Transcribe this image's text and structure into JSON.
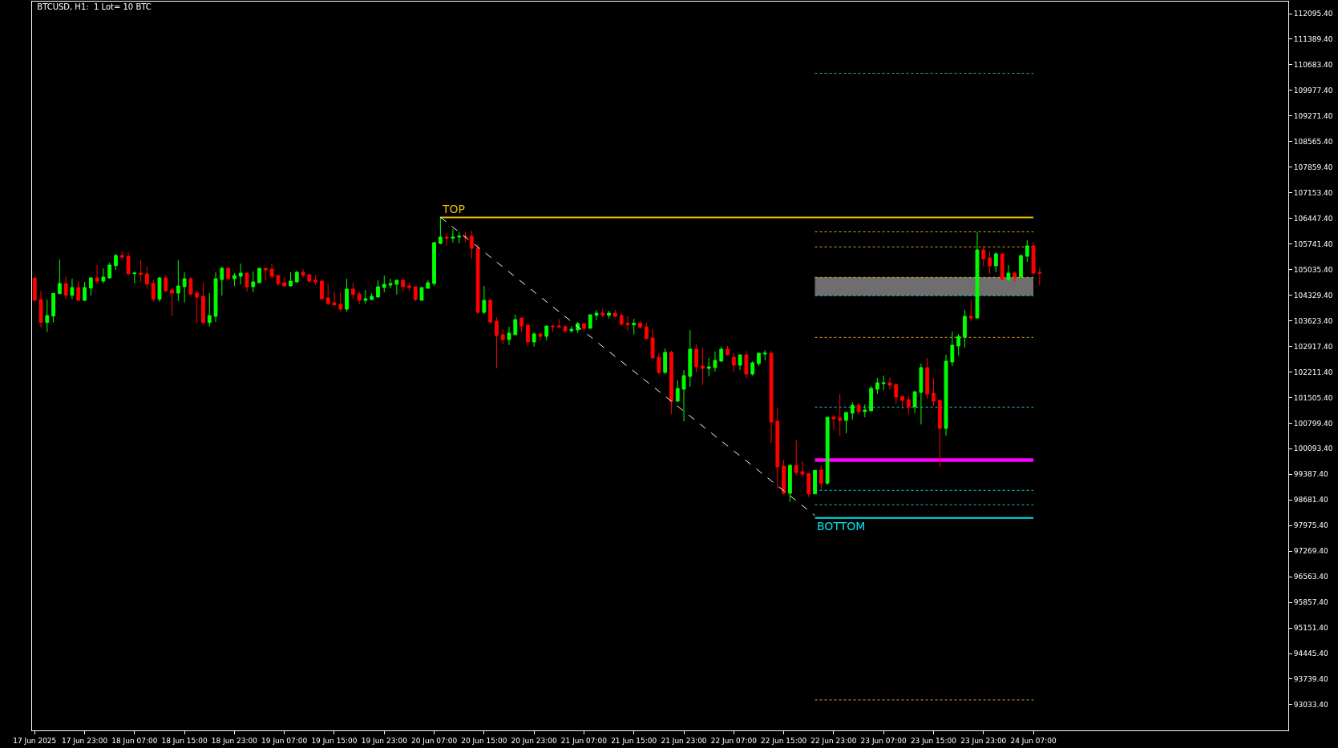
{
  "chart_data": {
    "type": "candlestick",
    "title": "BTCUSD, H1:  1 Lot= 10 BTC",
    "x": [
      "2025-06-17T15:00",
      "2025-06-17T16:00",
      "2025-06-17T17:00",
      "2025-06-17T18:00",
      "2025-06-17T19:00",
      "2025-06-17T20:00",
      "2025-06-17T21:00",
      "2025-06-17T22:00",
      "2025-06-17T23:00",
      "2025-06-18T00:00",
      "2025-06-18T01:00",
      "2025-06-18T02:00",
      "2025-06-18T03:00",
      "2025-06-18T04:00",
      "2025-06-18T05:00",
      "2025-06-18T06:00",
      "2025-06-18T07:00",
      "2025-06-18T08:00",
      "2025-06-18T09:00",
      "2025-06-18T10:00",
      "2025-06-18T11:00",
      "2025-06-18T12:00",
      "2025-06-18T13:00",
      "2025-06-18T14:00",
      "2025-06-18T15:00",
      "2025-06-18T16:00",
      "2025-06-18T17:00",
      "2025-06-18T18:00",
      "2025-06-18T19:00",
      "2025-06-18T20:00",
      "2025-06-18T21:00",
      "2025-06-18T22:00",
      "2025-06-18T23:00",
      "2025-06-19T00:00",
      "2025-06-19T01:00",
      "2025-06-19T02:00",
      "2025-06-19T03:00",
      "2025-06-19T04:00",
      "2025-06-19T05:00",
      "2025-06-19T06:00",
      "2025-06-19T07:00",
      "2025-06-19T08:00",
      "2025-06-19T09:00",
      "2025-06-19T10:00",
      "2025-06-19T11:00",
      "2025-06-19T12:00",
      "2025-06-19T13:00",
      "2025-06-19T14:00",
      "2025-06-19T15:00",
      "2025-06-19T16:00",
      "2025-06-19T17:00",
      "2025-06-19T18:00",
      "2025-06-19T19:00",
      "2025-06-19T20:00",
      "2025-06-19T21:00",
      "2025-06-19T22:00",
      "2025-06-19T23:00",
      "2025-06-20T00:00",
      "2025-06-20T01:00",
      "2025-06-20T02:00",
      "2025-06-20T03:00",
      "2025-06-20T04:00",
      "2025-06-20T05:00",
      "2025-06-20T06:00",
      "2025-06-20T07:00",
      "2025-06-20T08:00",
      "2025-06-20T09:00",
      "2025-06-20T10:00",
      "2025-06-20T11:00",
      "2025-06-20T12:00",
      "2025-06-20T13:00",
      "2025-06-20T14:00",
      "2025-06-20T15:00",
      "2025-06-20T16:00",
      "2025-06-20T17:00",
      "2025-06-20T18:00",
      "2025-06-20T19:00",
      "2025-06-20T20:00",
      "2025-06-20T21:00",
      "2025-06-20T22:00",
      "2025-06-20T23:00",
      "2025-06-21T00:00",
      "2025-06-21T01:00",
      "2025-06-21T02:00",
      "2025-06-21T03:00",
      "2025-06-21T04:00",
      "2025-06-21T05:00",
      "2025-06-21T06:00",
      "2025-06-21T07:00",
      "2025-06-21T08:00",
      "2025-06-21T09:00",
      "2025-06-21T10:00",
      "2025-06-21T11:00",
      "2025-06-21T12:00",
      "2025-06-21T13:00",
      "2025-06-21T14:00",
      "2025-06-21T15:00",
      "2025-06-21T16:00",
      "2025-06-21T17:00",
      "2025-06-21T18:00",
      "2025-06-21T19:00",
      "2025-06-21T20:00",
      "2025-06-21T21:00",
      "2025-06-21T22:00",
      "2025-06-21T23:00",
      "2025-06-22T00:00",
      "2025-06-22T01:00",
      "2025-06-22T02:00",
      "2025-06-22T03:00",
      "2025-06-22T04:00",
      "2025-06-22T05:00",
      "2025-06-22T06:00",
      "2025-06-22T07:00",
      "2025-06-22T08:00",
      "2025-06-22T09:00",
      "2025-06-22T10:00",
      "2025-06-22T11:00",
      "2025-06-22T12:00",
      "2025-06-22T13:00",
      "2025-06-22T14:00",
      "2025-06-22T15:00",
      "2025-06-22T16:00",
      "2025-06-22T17:00",
      "2025-06-22T18:00",
      "2025-06-22T19:00",
      "2025-06-22T20:00",
      "2025-06-22T21:00",
      "2025-06-22T22:00",
      "2025-06-22T23:00",
      "2025-06-23T00:00",
      "2025-06-23T01:00",
      "2025-06-23T02:00",
      "2025-06-23T03:00",
      "2025-06-23T04:00",
      "2025-06-23T05:00",
      "2025-06-23T06:00",
      "2025-06-23T07:00",
      "2025-06-23T08:00",
      "2025-06-23T09:00",
      "2025-06-23T10:00",
      "2025-06-23T11:00",
      "2025-06-23T12:00",
      "2025-06-23T13:00",
      "2025-06-23T14:00",
      "2025-06-23T15:00",
      "2025-06-23T16:00",
      "2025-06-23T17:00",
      "2025-06-23T18:00",
      "2025-06-23T19:00",
      "2025-06-23T20:00",
      "2025-06-23T21:00",
      "2025-06-23T22:00",
      "2025-06-23T23:00",
      "2025-06-24T00:00",
      "2025-06-24T01:00",
      "2025-06-24T02:00",
      "2025-06-24T03:00",
      "2025-06-24T04:00",
      "2025-06-24T05:00",
      "2025-06-24T06:00",
      "2025-06-24T07:00",
      "2025-06-24T08:00"
    ],
    "ohlc": [
      [
        104798,
        104828,
        104165,
        104187
      ],
      [
        104209,
        104445,
        103444,
        103576
      ],
      [
        103576,
        104209,
        103311,
        103768
      ],
      [
        103753,
        104386,
        103576,
        104379
      ],
      [
        104371,
        105314,
        104357,
        104651
      ],
      [
        104651,
        104850,
        104217,
        104327
      ],
      [
        104327,
        104784,
        104217,
        104541
      ],
      [
        104541,
        104717,
        104187,
        104187
      ],
      [
        104187,
        104695,
        104165,
        104541
      ],
      [
        104526,
        104821,
        104320,
        104806
      ],
      [
        104806,
        105159,
        104629,
        104717
      ],
      [
        104717,
        105071,
        104659,
        104828
      ],
      [
        104806,
        105225,
        104791,
        105159
      ],
      [
        105144,
        105468,
        105027,
        105424
      ],
      [
        105424,
        105535,
        105321,
        105380
      ],
      [
        105402,
        105513,
        104857,
        104924
      ],
      [
        104924,
        104983,
        104659,
        104938
      ],
      [
        104938,
        105292,
        104695,
        104902
      ],
      [
        104916,
        105115,
        104504,
        104636
      ],
      [
        104651,
        104762,
        104150,
        104217
      ],
      [
        104217,
        104828,
        104150,
        104806
      ],
      [
        104806,
        104872,
        104408,
        104452
      ],
      [
        104474,
        104519,
        103746,
        104386
      ],
      [
        104386,
        105292,
        104165,
        104585
      ],
      [
        104563,
        104960,
        104128,
        104784
      ],
      [
        104784,
        104828,
        104312,
        104364
      ],
      [
        104386,
        104474,
        103554,
        104276
      ],
      [
        104298,
        104673,
        103532,
        103576
      ],
      [
        103576,
        104386,
        103466,
        103768
      ],
      [
        103746,
        104960,
        103591,
        104784
      ],
      [
        104762,
        105115,
        104320,
        105071
      ],
      [
        105071,
        105115,
        104740,
        104784
      ],
      [
        104784,
        104938,
        104585,
        104872
      ],
      [
        104850,
        105203,
        104629,
        104938
      ],
      [
        104938,
        104960,
        104430,
        104563
      ],
      [
        104563,
        104983,
        104408,
        104695
      ],
      [
        104673,
        105071,
        104673,
        105071
      ],
      [
        105071,
        105071,
        104740,
        105027
      ],
      [
        105049,
        105203,
        104784,
        104850
      ],
      [
        104872,
        104872,
        104585,
        104651
      ],
      [
        104673,
        104828,
        104563,
        104585
      ],
      [
        104585,
        104960,
        104570,
        104717
      ],
      [
        104695,
        105005,
        104673,
        104960
      ],
      [
        104960,
        105049,
        104813,
        104879
      ],
      [
        104894,
        104894,
        104673,
        104717
      ],
      [
        104740,
        104894,
        104607,
        104695
      ],
      [
        104717,
        104762,
        104187,
        104231
      ],
      [
        104254,
        104651,
        104055,
        104099
      ],
      [
        104121,
        104430,
        104033,
        104062
      ],
      [
        104077,
        104408,
        103878,
        103944
      ],
      [
        103944,
        104784,
        103878,
        104497
      ],
      [
        104497,
        104673,
        104231,
        104349
      ],
      [
        104364,
        104430,
        104077,
        104187
      ],
      [
        104187,
        104474,
        104099,
        104231
      ],
      [
        104209,
        104386,
        104187,
        104298
      ],
      [
        104276,
        104740,
        104276,
        104563
      ],
      [
        104541,
        104872,
        104408,
        104629
      ],
      [
        104607,
        104784,
        104519,
        104651
      ],
      [
        104629,
        104762,
        104342,
        104740
      ],
      [
        104740,
        104784,
        104430,
        104563
      ],
      [
        104585,
        104673,
        104452,
        104541
      ],
      [
        104563,
        104563,
        104165,
        104209
      ],
      [
        104187,
        104541,
        104187,
        104541
      ],
      [
        104519,
        104740,
        104519,
        104673
      ],
      [
        104651,
        105800,
        104585,
        105778
      ],
      [
        105756,
        106485,
        105734,
        105932
      ],
      [
        105932,
        106043,
        105689,
        105903
      ],
      [
        105903,
        106153,
        105778,
        105932
      ],
      [
        105932,
        106065,
        105756,
        105954
      ],
      [
        105954,
        106065,
        105800,
        105932
      ],
      [
        105954,
        106109,
        105336,
        105623
      ],
      [
        105623,
        105756,
        103812,
        103856
      ],
      [
        103856,
        104585,
        103812,
        104187
      ],
      [
        104187,
        104231,
        103547,
        103591
      ],
      [
        103613,
        103723,
        102310,
        103215
      ],
      [
        103237,
        103392,
        102972,
        103105
      ],
      [
        103105,
        103458,
        102950,
        103282
      ],
      [
        103237,
        103790,
        103237,
        103657
      ],
      [
        103701,
        103701,
        103304,
        103480
      ],
      [
        103502,
        103502,
        102928,
        103039
      ],
      [
        103039,
        103304,
        102906,
        103260
      ],
      [
        103260,
        103304,
        103083,
        103193
      ],
      [
        103193,
        103480,
        103083,
        103480
      ],
      [
        103480,
        103502,
        103326,
        103458
      ],
      [
        103480,
        103679,
        103444,
        103444
      ],
      [
        103458,
        103502,
        103289,
        103348
      ],
      [
        103348,
        103480,
        103289,
        103392
      ],
      [
        103370,
        103591,
        103289,
        103547
      ],
      [
        103547,
        103547,
        103326,
        103414
      ],
      [
        103414,
        103790,
        103414,
        103790
      ],
      [
        103775,
        103922,
        103635,
        103834
      ],
      [
        103834,
        103966,
        103731,
        103775
      ],
      [
        103775,
        103900,
        103687,
        103834
      ],
      [
        103834,
        103922,
        103731,
        103745
      ],
      [
        103768,
        103834,
        103488,
        103532
      ],
      [
        103554,
        103745,
        103333,
        103510
      ],
      [
        103510,
        103679,
        103245,
        103554
      ],
      [
        103554,
        103613,
        103421,
        103444
      ],
      [
        103458,
        103569,
        103127,
        103127
      ],
      [
        103149,
        103392,
        102597,
        102597
      ],
      [
        102619,
        102729,
        102155,
        102199
      ],
      [
        102199,
        102862,
        102155,
        102751
      ],
      [
        102751,
        102796,
        101051,
        101404
      ],
      [
        101404,
        101978,
        101404,
        101757
      ],
      [
        101735,
        102265,
        100852,
        102111
      ],
      [
        102089,
        103370,
        101802,
        102840
      ],
      [
        102840,
        102972,
        102199,
        102354
      ],
      [
        102376,
        102884,
        101846,
        102310
      ],
      [
        102310,
        102597,
        102089,
        102354
      ],
      [
        102332,
        102774,
        102221,
        102531
      ],
      [
        102508,
        102906,
        102508,
        102840
      ],
      [
        102840,
        102928,
        102663,
        102685
      ],
      [
        102619,
        102729,
        102221,
        102398
      ],
      [
        102398,
        102685,
        102265,
        102685
      ],
      [
        102685,
        102796,
        102045,
        102155
      ],
      [
        102155,
        102508,
        102111,
        102464
      ],
      [
        102442,
        102751,
        102376,
        102729
      ],
      [
        102707,
        102818,
        102531,
        102729
      ],
      [
        102729,
        102796,
        100255,
        100830
      ],
      [
        100852,
        101227,
        98996,
        99593
      ],
      [
        99615,
        99792,
        98842,
        98864
      ],
      [
        98864,
        99659,
        98621,
        99637
      ],
      [
        99637,
        100344,
        99350,
        99438
      ],
      [
        99460,
        99747,
        99306,
        99394
      ],
      [
        99416,
        99416,
        98761,
        98849
      ],
      [
        98849,
        99512,
        98849,
        99497
      ],
      [
        99504,
        99637,
        98960,
        99144
      ],
      [
        99144,
        100962,
        99099,
        100962
      ],
      [
        100962,
        101029,
        100609,
        100918
      ],
      [
        100940,
        101603,
        100454,
        100874
      ],
      [
        100874,
        101095,
        100521,
        101095
      ],
      [
        101073,
        101382,
        100896,
        101294
      ],
      [
        101294,
        101360,
        101051,
        101117
      ],
      [
        101117,
        101316,
        100962,
        101161
      ],
      [
        101139,
        101824,
        101139,
        101758
      ],
      [
        101735,
        102045,
        101603,
        101912
      ],
      [
        101890,
        102111,
        101713,
        101912
      ],
      [
        101912,
        102067,
        101713,
        101846
      ],
      [
        101868,
        101868,
        101338,
        101515
      ],
      [
        101537,
        101559,
        101183,
        101426
      ],
      [
        101448,
        101559,
        101051,
        101249
      ],
      [
        101249,
        101669,
        101073,
        101669
      ],
      [
        101647,
        102442,
        100764,
        102332
      ],
      [
        102332,
        102597,
        101470,
        101603
      ],
      [
        101625,
        102045,
        101272,
        101404
      ],
      [
        101426,
        101448,
        99593,
        100653
      ],
      [
        100653,
        102685,
        100454,
        102509
      ],
      [
        102486,
        103326,
        102376,
        102950
      ],
      [
        102928,
        103260,
        102663,
        103193
      ],
      [
        103171,
        103922,
        102884,
        103746
      ],
      [
        103746,
        104209,
        103613,
        103701
      ],
      [
        103701,
        106065,
        103679,
        105579
      ],
      [
        105579,
        105689,
        105137,
        105336
      ],
      [
        105358,
        105535,
        104916,
        105137
      ],
      [
        105137,
        105513,
        104960,
        105468
      ],
      [
        105468,
        105468,
        104740,
        104762
      ],
      [
        104762,
        105159,
        104717,
        104938
      ],
      [
        104938,
        104983,
        104695,
        104828
      ],
      [
        104828,
        105446,
        104828,
        105424
      ],
      [
        105402,
        105844,
        105248,
        105689
      ],
      [
        105689,
        105800,
        104894,
        104938
      ],
      [
        104960,
        105093,
        104607,
        104938
      ]
    ],
    "series": [
      {
        "type": "line",
        "x": [
          "2025-06-20T08:00",
          "2025-06-22T20:00"
        ],
        "values": [
          106480,
          98250
        ],
        "color": "#ffffff",
        "line_style": "dashed"
      }
    ],
    "ref_lines": [
      {
        "axis": "y",
        "value": 106476,
        "color": "#e6c200",
        "line_style": "solid"
      },
      {
        "axis": "y",
        "value": 110449,
        "color": "#20b2aa",
        "line_style": "dotted"
      },
      {
        "axis": "y",
        "value": 106076,
        "color": "#daa520",
        "line_style": "dotted"
      },
      {
        "axis": "y",
        "value": 105661,
        "color": "#daa520",
        "line_style": "dotted"
      },
      {
        "axis": "y",
        "value": 104821,
        "color": "#daa520",
        "line_style": "dotted"
      },
      {
        "axis": "y",
        "value": 104313,
        "color": "#00ced1",
        "line_style": "dotted"
      },
      {
        "axis": "y",
        "value": 103164,
        "color": "#daa520",
        "line_style": "dotted"
      },
      {
        "axis": "y",
        "value": 101242,
        "color": "#00ced1",
        "line_style": "dotted"
      },
      {
        "axis": "y",
        "value": 98945,
        "color": "#00ced1",
        "line_style": "dotted"
      },
      {
        "axis": "y",
        "value": 98548,
        "color": "#00ced1",
        "line_style": "dotted"
      },
      {
        "axis": "y",
        "value": 98185,
        "color": "#00e5ee",
        "line_style": "solid"
      },
      {
        "axis": "y",
        "value": 93166,
        "color": "#daa520",
        "line_style": "dotted"
      }
    ],
    "bands": [
      {
        "axis": "y",
        "from": 104313,
        "to": 104821,
        "color": "#6e6e6e"
      },
      {
        "axis": "y",
        "from": 99732,
        "to": 99828,
        "color": "#ff00ff"
      }
    ],
    "annotations": [
      {
        "text": "TOP",
        "x": "2025-06-20T08:00",
        "y": 106476
      },
      {
        "text": "BOTTOM",
        "x": "2025-06-22T20:00",
        "y": 98185
      }
    ],
    "xlim": [
      "2025-06-17T14:35",
      "2025-06-25T23:50"
    ],
    "xticks": [
      {
        "value": "2025-06-17T15:00",
        "label": "17 Jun 2025"
      },
      {
        "value": "2025-06-17T23:00",
        "label": "17 Jun 23:00"
      },
      {
        "value": "2025-06-18T07:00",
        "label": "18 Jun 07:00"
      },
      {
        "value": "2025-06-18T15:00",
        "label": "18 Jun 15:00"
      },
      {
        "value": "2025-06-18T23:00",
        "label": "18 Jun 23:00"
      },
      {
        "value": "2025-06-19T07:00",
        "label": "19 Jun 07:00"
      },
      {
        "value": "2025-06-19T15:00",
        "label": "19 Jun 15:00"
      },
      {
        "value": "2025-06-19T23:00",
        "label": "19 Jun 23:00"
      },
      {
        "value": "2025-06-20T07:00",
        "label": "20 Jun 07:00"
      },
      {
        "value": "2025-06-20T15:00",
        "label": "20 Jun 15:00"
      },
      {
        "value": "2025-06-20T23:00",
        "label": "20 Jun 23:00"
      },
      {
        "value": "2025-06-21T07:00",
        "label": "21 Jun 07:00"
      },
      {
        "value": "2025-06-21T15:00",
        "label": "21 Jun 15:00"
      },
      {
        "value": "2025-06-21T23:00",
        "label": "21 Jun 23:00"
      },
      {
        "value": "2025-06-22T07:00",
        "label": "22 Jun 07:00"
      },
      {
        "value": "2025-06-22T15:00",
        "label": "22 Jun 15:00"
      },
      {
        "value": "2025-06-22T23:00",
        "label": "22 Jun 23:00"
      },
      {
        "value": "2025-06-23T07:00",
        "label": "23 Jun 07:00"
      },
      {
        "value": "2025-06-23T15:00",
        "label": "23 Jun 15:00"
      },
      {
        "value": "2025-06-23T23:00",
        "label": "23 Jun 23:00"
      },
      {
        "value": "2025-06-24T07:00",
        "label": "24 Jun 07:00"
      }
    ],
    "ylim": [
      92325,
      112427
    ],
    "yticks": [
      {
        "value": 112095.4,
        "label": "112095.40"
      },
      {
        "value": 111389.4,
        "label": "111389.40"
      },
      {
        "value": 110683.4,
        "label": "110683.40"
      },
      {
        "value": 109977.4,
        "label": "109977.40"
      },
      {
        "value": 109271.4,
        "label": "109271.40"
      },
      {
        "value": 108565.4,
        "label": "108565.40"
      },
      {
        "value": 107859.4,
        "label": "107859.40"
      },
      {
        "value": 107153.4,
        "label": "107153.40"
      },
      {
        "value": 106447.4,
        "label": "106447.40"
      },
      {
        "value": 105741.4,
        "label": "105741.40"
      },
      {
        "value": 105035.4,
        "label": "105035.40"
      },
      {
        "value": 104329.4,
        "label": "104329.40"
      },
      {
        "value": 103623.4,
        "label": "103623.40"
      },
      {
        "value": 102917.4,
        "label": "102917.40"
      },
      {
        "value": 102211.4,
        "label": "102211.40"
      },
      {
        "value": 101505.4,
        "label": "101505.40"
      },
      {
        "value": 100799.4,
        "label": "100799.40"
      },
      {
        "value": 100093.4,
        "label": "100093.40"
      },
      {
        "value": 99387.4,
        "label": "99387.40"
      },
      {
        "value": 98681.4,
        "label": "98681.40"
      },
      {
        "value": 97975.4,
        "label": "97975.40"
      },
      {
        "value": 97269.4,
        "label": "97269.40"
      },
      {
        "value": 96563.4,
        "label": "96563.40"
      },
      {
        "value": 95857.4,
        "label": "95857.40"
      },
      {
        "value": 95151.4,
        "label": "95151.40"
      },
      {
        "value": 94445.4,
        "label": "94445.40"
      },
      {
        "value": 93739.4,
        "label": "93739.40"
      },
      {
        "value": 93033.4,
        "label": "93033.40"
      }
    ],
    "grid": false
  }
}
